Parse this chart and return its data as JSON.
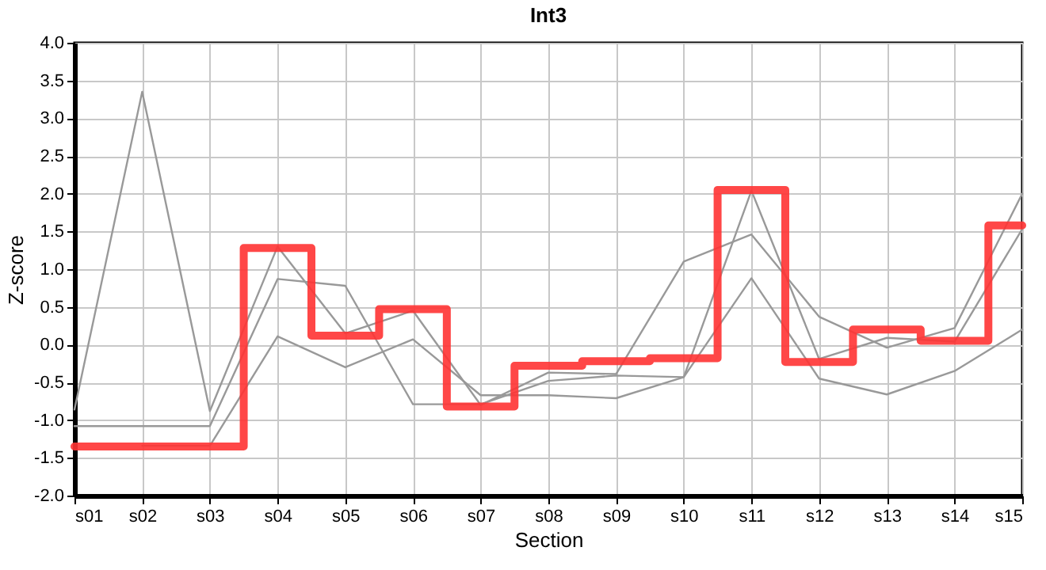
{
  "chart_data": {
    "type": "line",
    "title": "Int3",
    "xlabel": "Section",
    "ylabel": "Z-score",
    "categories": [
      "s01",
      "s02",
      "s03",
      "s04",
      "s05",
      "s06",
      "s07",
      "s08",
      "s09",
      "s10",
      "s11",
      "s12",
      "s13",
      "s14",
      "s15"
    ],
    "series": [
      {
        "color": "#999999",
        "values": [
          -0.86,
          3.35,
          -0.88,
          1.3,
          0.15,
          0.45,
          -0.8,
          -0.37,
          -0.39,
          1.1,
          1.46,
          0.37,
          -0.04,
          0.22,
          2.0
        ]
      },
      {
        "color": "#999999",
        "values": [
          -1.08,
          -1.08,
          -1.08,
          0.87,
          0.78,
          -0.79,
          -0.79,
          -0.48,
          -0.41,
          -0.43,
          2.04,
          -0.19,
          0.09,
          0.04,
          1.53
        ]
      },
      {
        "color": "#999999",
        "values": [
          null,
          -1.34,
          -1.34,
          0.11,
          -0.3,
          0.07,
          -0.67,
          -0.67,
          -0.71,
          -0.43,
          0.88,
          -0.45,
          -0.66,
          -0.35,
          0.2
        ]
      },
      {
        "type": "step",
        "color": "#ff3333",
        "values": [
          -1.35,
          -1.35,
          -1.35,
          1.28,
          0.12,
          0.47,
          -0.82,
          -0.28,
          -0.22,
          -0.18,
          2.05,
          -0.23,
          0.2,
          0.05,
          1.58
        ]
      }
    ],
    "ylim": [
      -2,
      4
    ],
    "yticks": [
      {
        "value": -2,
        "label": "-2.0"
      },
      {
        "value": -1.5,
        "label": "-1.5"
      },
      {
        "value": -1,
        "label": "-1.0"
      },
      {
        "value": -0.5,
        "label": "-0.5"
      },
      {
        "value": 0,
        "label": "0.0"
      },
      {
        "value": 0.5,
        "label": "0.5"
      },
      {
        "value": 1,
        "label": "1.0"
      },
      {
        "value": 1.5,
        "label": "1.5"
      },
      {
        "value": 2,
        "label": "2.0"
      },
      {
        "value": 2.5,
        "label": "2.5"
      },
      {
        "value": 3,
        "label": "3.0"
      },
      {
        "value": 3.5,
        "label": "3.5"
      },
      {
        "value": 4,
        "label": "4.0"
      }
    ],
    "grid": true
  }
}
